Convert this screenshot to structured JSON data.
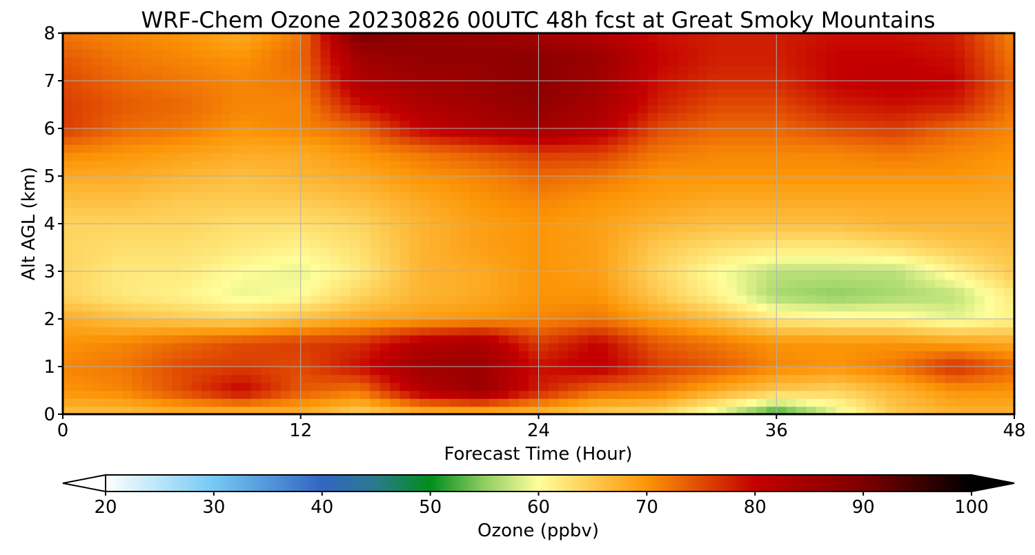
{
  "chart_data": {
    "type": "heatmap",
    "title": "WRF-Chem Ozone  20230826 00UTC 48h fcst at Great Smoky Mountains",
    "xlabel": "Forecast Time (Hour)",
    "ylabel": "Alt AGL (km)",
    "xlim": [
      0,
      48
    ],
    "ylim": [
      0,
      8
    ],
    "xticks": [
      0,
      12,
      24,
      36,
      48
    ],
    "yticks": [
      0,
      1,
      2,
      3,
      4,
      5,
      6,
      7,
      8
    ],
    "grid": true,
    "x": [
      0,
      3,
      6,
      9,
      12,
      15,
      18,
      21,
      24,
      27,
      30,
      33,
      36,
      39,
      42,
      45,
      48
    ],
    "y": [
      0,
      0.5,
      1,
      1.5,
      2,
      2.5,
      3,
      3.5,
      4,
      4.5,
      5,
      5.5,
      6,
      6.5,
      7,
      7.5,
      8
    ],
    "z": [
      [
        66,
        66,
        67,
        66,
        67,
        64,
        66,
        66,
        66,
        64,
        63,
        58,
        51,
        58,
        65,
        67,
        67
      ],
      [
        70,
        71,
        75,
        80,
        74,
        72,
        82,
        86,
        78,
        73,
        72,
        68,
        65,
        64,
        67,
        70,
        70
      ],
      [
        71,
        72,
        75,
        76,
        75,
        79,
        85,
        86,
        79,
        81,
        76,
        74,
        71,
        70,
        72,
        77,
        73
      ],
      [
        70,
        71,
        73,
        75,
        76,
        77,
        82,
        84,
        76,
        80,
        74,
        72,
        70,
        70,
        70,
        69,
        68
      ],
      [
        68,
        66,
        65,
        64,
        66,
        68,
        69,
        70,
        71,
        72,
        69,
        66,
        62,
        61,
        61,
        59,
        61
      ],
      [
        64,
        62,
        61,
        59,
        60,
        64,
        67,
        68,
        70,
        70,
        65,
        61,
        56,
        55,
        56,
        57,
        62
      ],
      [
        64,
        62,
        62,
        60,
        59,
        62,
        67,
        68,
        70,
        69,
        64,
        60,
        57,
        57,
        57,
        61,
        65
      ],
      [
        64,
        63,
        63,
        62,
        61,
        63,
        67,
        69,
        70,
        69,
        65,
        63,
        62,
        62,
        63,
        65,
        66
      ],
      [
        64,
        64,
        64,
        63,
        63,
        64,
        67,
        69,
        70,
        69,
        67,
        66,
        66,
        66,
        67,
        67,
        67
      ],
      [
        66,
        66,
        65,
        65,
        65,
        66,
        68,
        70,
        71,
        70,
        69,
        68,
        68,
        68,
        68,
        68,
        68
      ],
      [
        68,
        68,
        67,
        66,
        67,
        68,
        70,
        71,
        73,
        72,
        70,
        70,
        70,
        70,
        70,
        70,
        69
      ],
      [
        71,
        70,
        69,
        68,
        68,
        70,
        72,
        74,
        76,
        76,
        72,
        71,
        71,
        71,
        72,
        71,
        70
      ],
      [
        76,
        73,
        72,
        70,
        71,
        73,
        80,
        83,
        85,
        82,
        75,
        73,
        73,
        75,
        76,
        73,
        71
      ],
      [
        76,
        74,
        73,
        71,
        71,
        79,
        83,
        85,
        87,
        84,
        78,
        75,
        75,
        78,
        79,
        78,
        72
      ],
      [
        75,
        73,
        72,
        71,
        72,
        83,
        85,
        86,
        88,
        85,
        79,
        77,
        77,
        80,
        81,
        80,
        73
      ],
      [
        74,
        72,
        71,
        70,
        73,
        85,
        87,
        87,
        88,
        86,
        80,
        78,
        78,
        80,
        80,
        79,
        72
      ],
      [
        72,
        71,
        70,
        68,
        72,
        90,
        87,
        86,
        84,
        82,
        79,
        78,
        78,
        79,
        79,
        78,
        71
      ]
    ],
    "colorbar": {
      "label": "Ozone  (ppbv)",
      "min": 20,
      "max": 100,
      "ticks": [
        20,
        30,
        40,
        50,
        60,
        70,
        80,
        90,
        100
      ],
      "extend": "both",
      "stops": [
        {
          "v": 20,
          "c": "#ffffff"
        },
        {
          "v": 30,
          "c": "#74c9f3"
        },
        {
          "v": 40,
          "c": "#3265c2"
        },
        {
          "v": 45,
          "c": "#2a7a8c"
        },
        {
          "v": 50,
          "c": "#008e1c"
        },
        {
          "v": 55,
          "c": "#8fce62"
        },
        {
          "v": 60,
          "c": "#fffe9a"
        },
        {
          "v": 70,
          "c": "#fc9506"
        },
        {
          "v": 80,
          "c": "#c40000"
        },
        {
          "v": 90,
          "c": "#7d0000"
        },
        {
          "v": 100,
          "c": "#000000"
        }
      ]
    }
  }
}
